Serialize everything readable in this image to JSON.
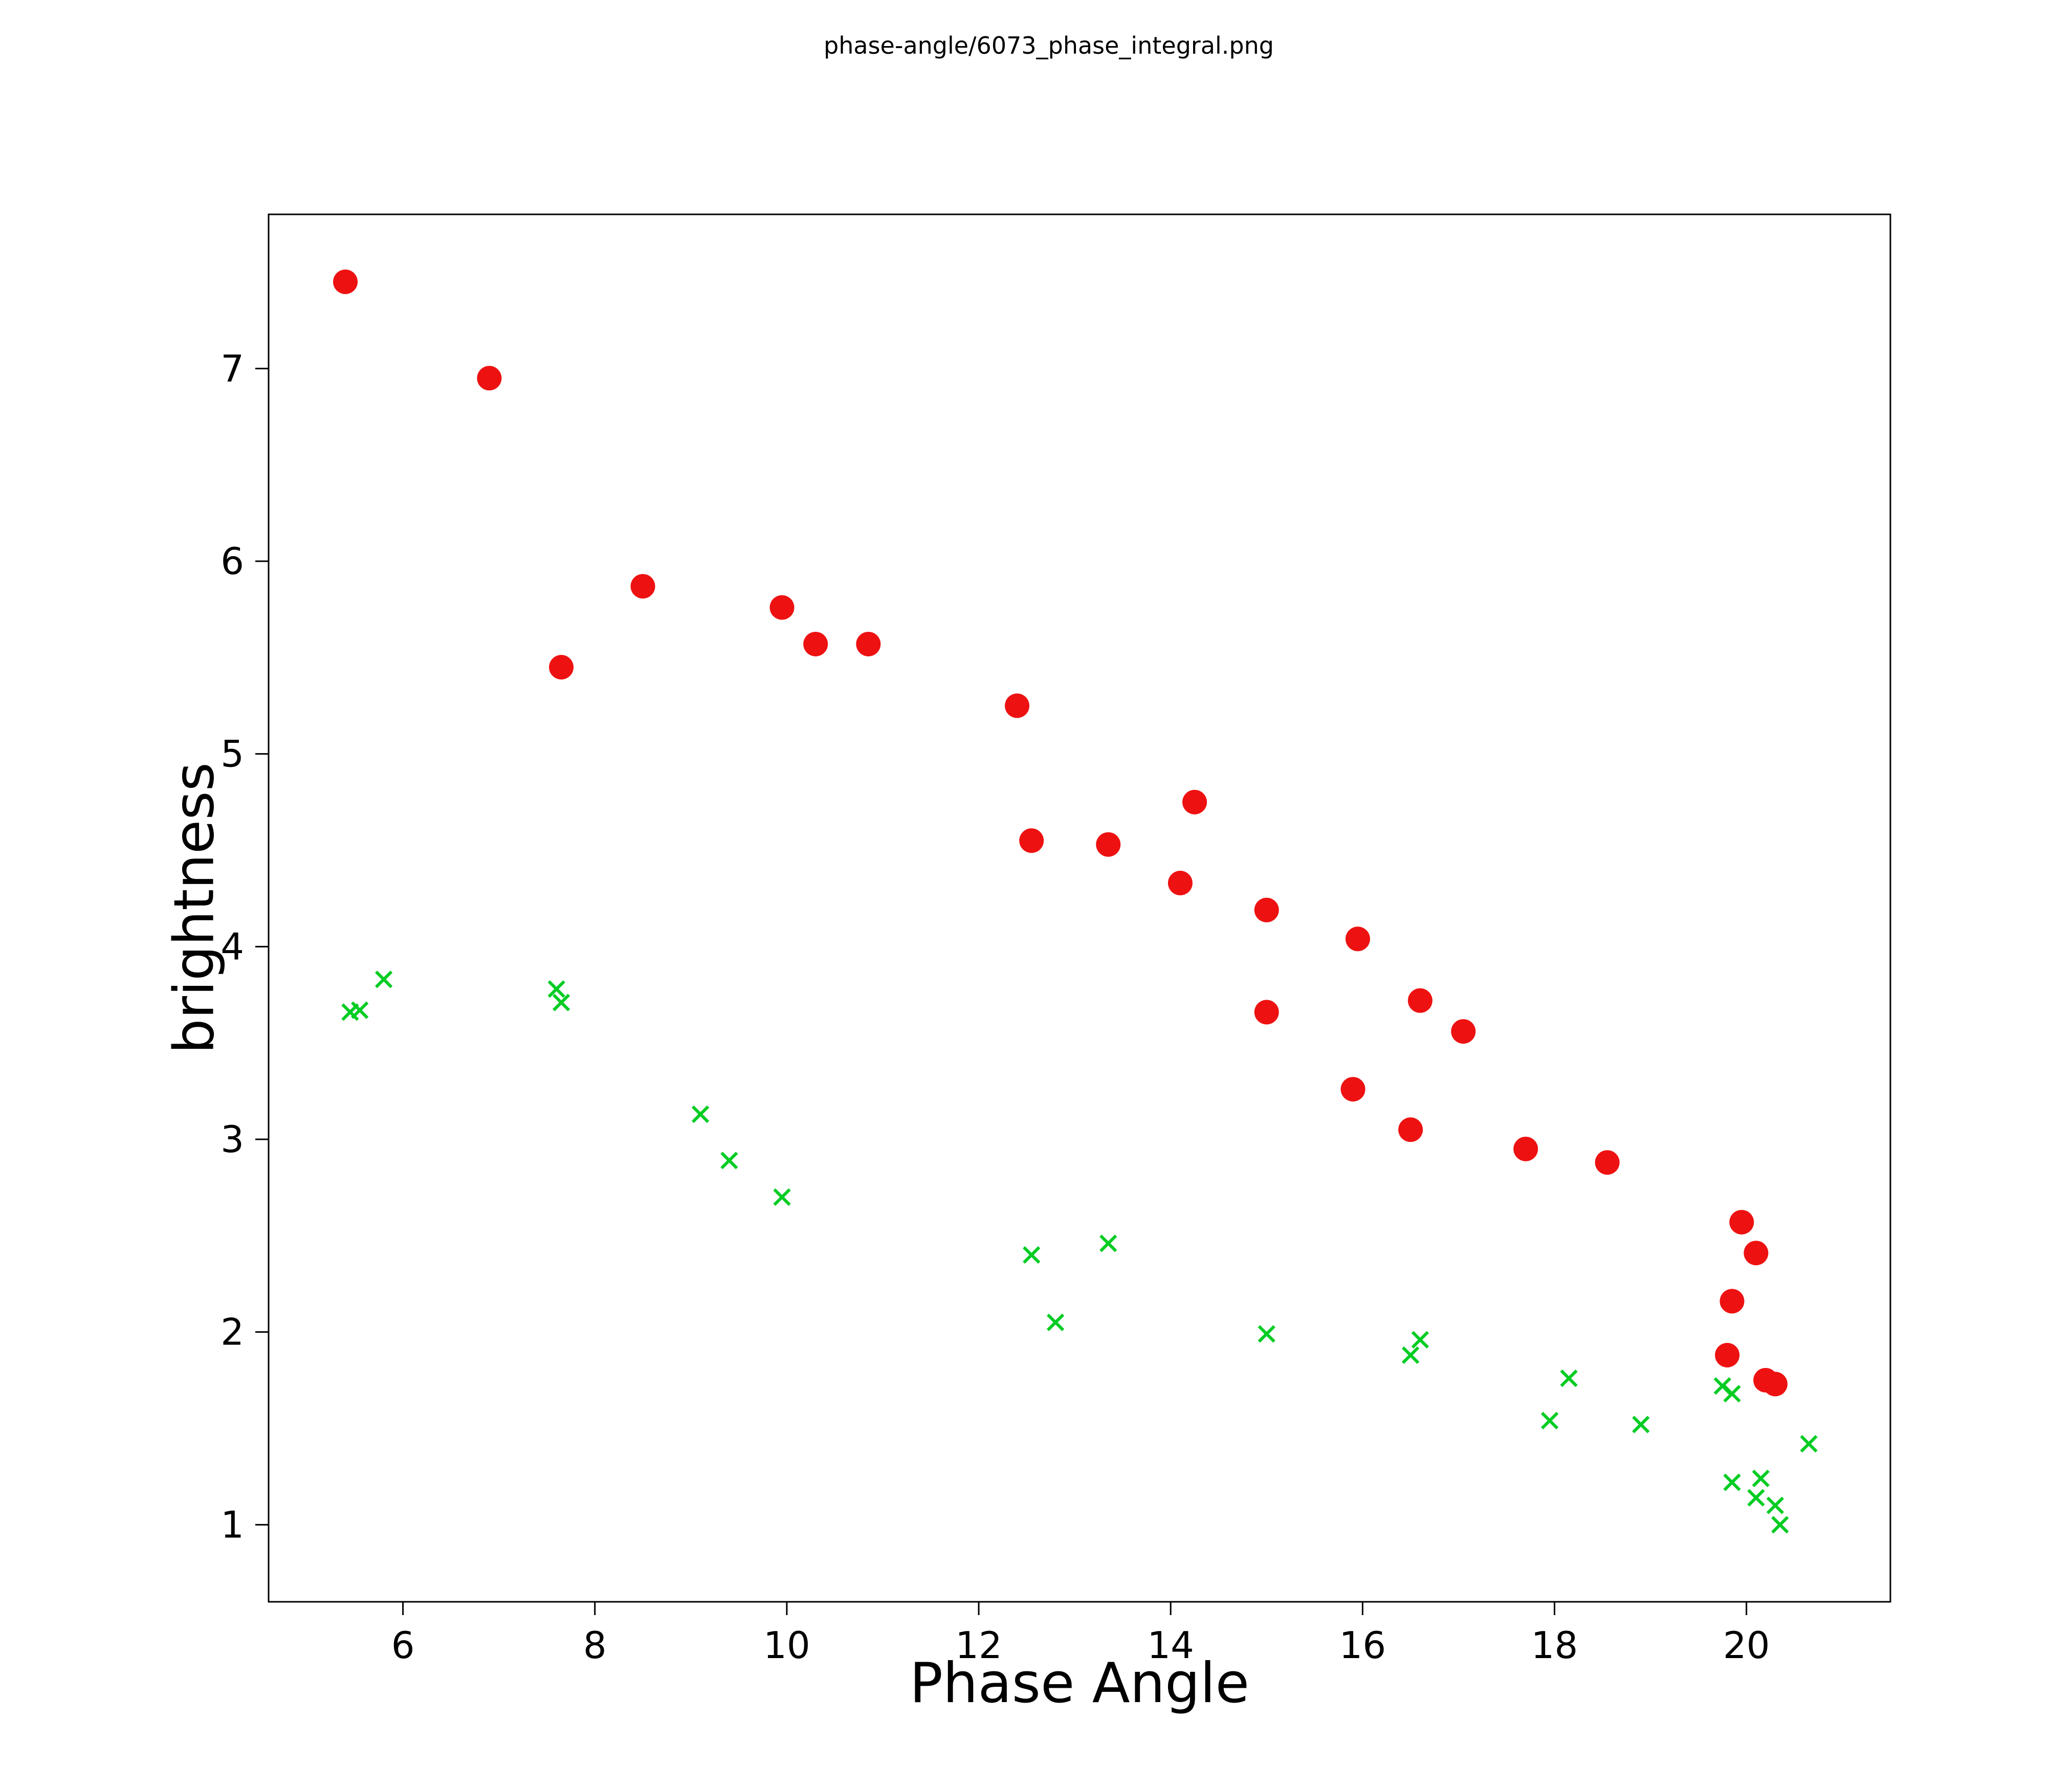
{
  "figure": {
    "title": "phase-angle/6073_phase_integral.png"
  },
  "chart_data": {
    "type": "scatter",
    "title": "phase-angle/6073_phase_integral.png",
    "xlabel": "Phase Angle",
    "ylabel": "brightness",
    "xlim": [
      4.6,
      21.5
    ],
    "ylim": [
      0.6,
      7.8
    ],
    "xticks": [
      6,
      8,
      10,
      12,
      14,
      16,
      18,
      20
    ],
    "yticks": [
      1,
      2,
      3,
      4,
      5,
      6,
      7
    ],
    "grid": false,
    "legend": null,
    "series": [
      {
        "name": "red-circles",
        "marker": "circle",
        "color": "#ee1111",
        "points": [
          [
            5.4,
            7.45
          ],
          [
            6.9,
            6.95
          ],
          [
            7.65,
            5.45
          ],
          [
            8.5,
            5.87
          ],
          [
            9.95,
            5.76
          ],
          [
            10.3,
            5.57
          ],
          [
            10.85,
            5.57
          ],
          [
            12.4,
            5.25
          ],
          [
            12.55,
            4.55
          ],
          [
            13.35,
            4.53
          ],
          [
            14.1,
            4.33
          ],
          [
            14.25,
            4.75
          ],
          [
            15.0,
            4.19
          ],
          [
            15.0,
            3.66
          ],
          [
            15.95,
            4.04
          ],
          [
            15.9,
            3.26
          ],
          [
            16.6,
            3.72
          ],
          [
            16.5,
            3.05
          ],
          [
            17.05,
            3.56
          ],
          [
            17.7,
            2.95
          ],
          [
            18.55,
            2.88
          ],
          [
            19.95,
            2.57
          ],
          [
            20.1,
            2.41
          ],
          [
            19.85,
            2.16
          ],
          [
            19.8,
            1.88
          ],
          [
            20.2,
            1.75
          ],
          [
            20.3,
            1.73
          ]
        ]
      },
      {
        "name": "green-crosses",
        "marker": "x",
        "color": "#00cc22",
        "points": [
          [
            5.45,
            3.66
          ],
          [
            5.55,
            3.67
          ],
          [
            5.8,
            3.83
          ],
          [
            7.6,
            3.78
          ],
          [
            7.65,
            3.71
          ],
          [
            9.1,
            3.13
          ],
          [
            9.4,
            2.89
          ],
          [
            9.95,
            2.7
          ],
          [
            12.55,
            2.4
          ],
          [
            12.8,
            2.05
          ],
          [
            13.35,
            2.46
          ],
          [
            15.0,
            1.99
          ],
          [
            16.6,
            1.96
          ],
          [
            16.5,
            1.88
          ],
          [
            18.15,
            1.76
          ],
          [
            17.95,
            1.54
          ],
          [
            18.9,
            1.52
          ],
          [
            19.75,
            1.72
          ],
          [
            19.85,
            1.68
          ],
          [
            19.85,
            1.22
          ],
          [
            20.1,
            1.14
          ],
          [
            20.15,
            1.24
          ],
          [
            20.3,
            1.1
          ],
          [
            20.35,
            1.0
          ],
          [
            20.65,
            1.42
          ]
        ]
      }
    ]
  }
}
